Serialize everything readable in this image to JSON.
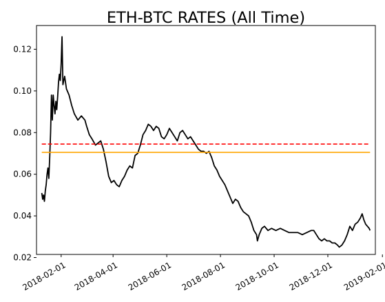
{
  "chart_data": {
    "type": "line",
    "title": "ETH-BTC RATES (All Time)",
    "xlabel": "",
    "ylabel": "",
    "x_range": [
      "2018-01-04",
      "2019-01-24"
    ],
    "ylim": [
      0.0215,
      0.1314
    ],
    "grid": false,
    "legend": "none",
    "x_ticks": [
      "2018-02-01",
      "2018-04-01",
      "2018-06-01",
      "2018-08-01",
      "2018-10-01",
      "2018-12-01",
      "2019-02-01"
    ],
    "y_ticks": [
      0.02,
      0.04,
      0.06,
      0.08,
      0.1,
      0.12
    ],
    "series": [
      {
        "color": "#000000",
        "style": "solid",
        "points": [
          [
            "2018-01-10",
            0.051
          ],
          [
            "2018-01-11",
            0.048
          ],
          [
            "2018-01-12",
            0.05
          ],
          [
            "2018-01-13",
            0.047
          ],
          [
            "2018-01-14",
            0.052
          ],
          [
            "2018-01-15",
            0.055
          ],
          [
            "2018-01-16",
            0.06
          ],
          [
            "2018-01-17",
            0.063
          ],
          [
            "2018-01-18",
            0.058
          ],
          [
            "2018-01-19",
            0.068
          ],
          [
            "2018-01-20",
            0.08
          ],
          [
            "2018-01-21",
            0.098
          ],
          [
            "2018-01-22",
            0.086
          ],
          [
            "2018-01-23",
            0.098
          ],
          [
            "2018-01-24",
            0.093
          ],
          [
            "2018-01-25",
            0.089
          ],
          [
            "2018-01-26",
            0.095
          ],
          [
            "2018-01-27",
            0.091
          ],
          [
            "2018-01-28",
            0.097
          ],
          [
            "2018-01-29",
            0.104
          ],
          [
            "2018-01-30",
            0.108
          ],
          [
            "2018-01-31",
            0.105
          ],
          [
            "2018-02-01",
            0.113
          ],
          [
            "2018-02-02",
            0.126
          ],
          [
            "2018-02-03",
            0.103
          ],
          [
            "2018-02-05",
            0.107
          ],
          [
            "2018-02-07",
            0.101
          ],
          [
            "2018-02-10",
            0.098
          ],
          [
            "2018-02-13",
            0.093
          ],
          [
            "2018-02-16",
            0.089
          ],
          [
            "2018-02-20",
            0.086
          ],
          [
            "2018-02-24",
            0.088
          ],
          [
            "2018-02-28",
            0.086
          ],
          [
            "2018-03-02",
            0.083
          ],
          [
            "2018-03-05",
            0.079
          ],
          [
            "2018-03-08",
            0.077
          ],
          [
            "2018-03-12",
            0.074
          ],
          [
            "2018-03-15",
            0.075
          ],
          [
            "2018-03-18",
            0.076
          ],
          [
            "2018-03-21",
            0.072
          ],
          [
            "2018-03-24",
            0.066
          ],
          [
            "2018-03-27",
            0.059
          ],
          [
            "2018-03-30",
            0.056
          ],
          [
            "2018-04-02",
            0.057
          ],
          [
            "2018-04-05",
            0.055
          ],
          [
            "2018-04-08",
            0.054
          ],
          [
            "2018-04-11",
            0.057
          ],
          [
            "2018-04-14",
            0.059
          ],
          [
            "2018-04-17",
            0.062
          ],
          [
            "2018-04-20",
            0.064
          ],
          [
            "2018-04-23",
            0.063
          ],
          [
            "2018-04-26",
            0.069
          ],
          [
            "2018-04-29",
            0.07
          ],
          [
            "2018-05-02",
            0.074
          ],
          [
            "2018-05-05",
            0.079
          ],
          [
            "2018-05-08",
            0.081
          ],
          [
            "2018-05-11",
            0.084
          ],
          [
            "2018-05-14",
            0.083
          ],
          [
            "2018-05-17",
            0.081
          ],
          [
            "2018-05-20",
            0.083
          ],
          [
            "2018-05-23",
            0.082
          ],
          [
            "2018-05-26",
            0.078
          ],
          [
            "2018-05-29",
            0.077
          ],
          [
            "2018-06-01",
            0.079
          ],
          [
            "2018-06-04",
            0.082
          ],
          [
            "2018-06-07",
            0.08
          ],
          [
            "2018-06-10",
            0.078
          ],
          [
            "2018-06-13",
            0.076
          ],
          [
            "2018-06-16",
            0.08
          ],
          [
            "2018-06-19",
            0.081
          ],
          [
            "2018-06-22",
            0.079
          ],
          [
            "2018-06-25",
            0.077
          ],
          [
            "2018-06-28",
            0.078
          ],
          [
            "2018-07-01",
            0.076
          ],
          [
            "2018-07-04",
            0.074
          ],
          [
            "2018-07-07",
            0.072
          ],
          [
            "2018-07-10",
            0.071
          ],
          [
            "2018-07-13",
            0.071
          ],
          [
            "2018-07-16",
            0.07
          ],
          [
            "2018-07-19",
            0.071
          ],
          [
            "2018-07-22",
            0.068
          ],
          [
            "2018-07-25",
            0.064
          ],
          [
            "2018-07-28",
            0.062
          ],
          [
            "2018-07-31",
            0.059
          ],
          [
            "2018-08-03",
            0.057
          ],
          [
            "2018-08-06",
            0.055
          ],
          [
            "2018-08-09",
            0.052
          ],
          [
            "2018-08-12",
            0.049
          ],
          [
            "2018-08-15",
            0.046
          ],
          [
            "2018-08-18",
            0.048
          ],
          [
            "2018-08-21",
            0.047
          ],
          [
            "2018-08-24",
            0.044
          ],
          [
            "2018-08-27",
            0.042
          ],
          [
            "2018-08-30",
            0.041
          ],
          [
            "2018-09-02",
            0.04
          ],
          [
            "2018-09-05",
            0.037
          ],
          [
            "2018-09-08",
            0.033
          ],
          [
            "2018-09-11",
            0.031
          ],
          [
            "2018-09-12",
            0.028
          ],
          [
            "2018-09-14",
            0.031
          ],
          [
            "2018-09-17",
            0.034
          ],
          [
            "2018-09-20",
            0.035
          ],
          [
            "2018-09-24",
            0.033
          ],
          [
            "2018-09-28",
            0.034
          ],
          [
            "2018-10-03",
            0.033
          ],
          [
            "2018-10-08",
            0.034
          ],
          [
            "2018-10-13",
            0.033
          ],
          [
            "2018-10-18",
            0.032
          ],
          [
            "2018-10-23",
            0.032
          ],
          [
            "2018-10-28",
            0.032
          ],
          [
            "2018-11-02",
            0.031
          ],
          [
            "2018-11-07",
            0.032
          ],
          [
            "2018-11-12",
            0.033
          ],
          [
            "2018-11-15",
            0.033
          ],
          [
            "2018-11-18",
            0.031
          ],
          [
            "2018-11-21",
            0.029
          ],
          [
            "2018-11-24",
            0.028
          ],
          [
            "2018-11-27",
            0.029
          ],
          [
            "2018-11-30",
            0.028
          ],
          [
            "2018-12-03",
            0.028
          ],
          [
            "2018-12-06",
            0.027
          ],
          [
            "2018-12-09",
            0.027
          ],
          [
            "2018-12-12",
            0.026
          ],
          [
            "2018-12-14",
            0.025
          ],
          [
            "2018-12-17",
            0.026
          ],
          [
            "2018-12-20",
            0.028
          ],
          [
            "2018-12-23",
            0.031
          ],
          [
            "2018-12-26",
            0.035
          ],
          [
            "2018-12-29",
            0.033
          ],
          [
            "2019-01-01",
            0.036
          ],
          [
            "2019-01-04",
            0.037
          ],
          [
            "2019-01-07",
            0.039
          ],
          [
            "2019-01-09",
            0.041
          ],
          [
            "2019-01-11",
            0.038
          ],
          [
            "2019-01-13",
            0.036
          ],
          [
            "2019-01-15",
            0.035
          ],
          [
            "2019-01-17",
            0.034
          ],
          [
            "2019-01-18",
            0.033
          ]
        ]
      },
      {
        "color": "#ff0000",
        "style": "dashed",
        "points": [
          [
            "2018-01-10",
            0.0745
          ],
          [
            "2019-01-18",
            0.0745
          ]
        ]
      },
      {
        "color": "#ffa500",
        "style": "solid",
        "points": [
          [
            "2018-01-10",
            0.0705
          ],
          [
            "2019-01-18",
            0.0705
          ]
        ]
      }
    ]
  }
}
